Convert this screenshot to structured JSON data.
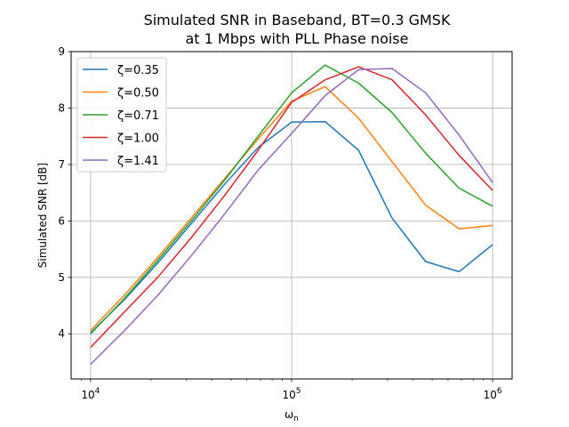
{
  "chart_data": {
    "type": "line",
    "title_line1": "Simulated SNR in Baseband, BT=0.3 GMSK",
    "title_line2": "at 1 Mbps with PLL Phase noise",
    "xlabel_base": "ω",
    "xlabel_sub": "n",
    "ylabel": "Simulated SNR [dB]",
    "x_scale": "log",
    "xlim": [
      8000,
      1250000
    ],
    "ylim": [
      3.2,
      9.0
    ],
    "x_ticks": [
      {
        "value": 10000,
        "base": "10",
        "exp": "4"
      },
      {
        "value": 100000,
        "base": "10",
        "exp": "5"
      },
      {
        "value": 1000000,
        "base": "10",
        "exp": "6"
      }
    ],
    "y_ticks": [
      {
        "value": 4,
        "label": "4"
      },
      {
        "value": 5,
        "label": "5"
      },
      {
        "value": 6,
        "label": "6"
      },
      {
        "value": 7,
        "label": "7"
      },
      {
        "value": 8,
        "label": "8"
      },
      {
        "value": 9,
        "label": "9"
      }
    ],
    "grid": true,
    "legend_position": "top-left",
    "x": [
      10000,
      14678,
      21544,
      31623,
      46416,
      68129,
      100000,
      146780,
      215440,
      316230,
      464160,
      681290,
      1000000
    ],
    "series": [
      {
        "name": "ζ=0.35",
        "color": "#1f77b4",
        "values": [
          4.02,
          4.6,
          5.25,
          5.95,
          6.65,
          7.3,
          7.75,
          7.76,
          7.25,
          6.05,
          5.28,
          5.1,
          5.58
        ]
      },
      {
        "name": "ζ=0.50",
        "color": "#ff7f0e",
        "values": [
          4.06,
          4.68,
          5.35,
          6.05,
          6.75,
          7.45,
          8.12,
          8.38,
          7.82,
          7.05,
          6.28,
          5.86,
          5.92
        ]
      },
      {
        "name": "ζ=0.71",
        "color": "#2ca02c",
        "values": [
          4.0,
          4.62,
          5.3,
          6.0,
          6.72,
          7.5,
          8.27,
          8.76,
          8.44,
          7.92,
          7.2,
          6.58,
          6.26
        ]
      },
      {
        "name": "ζ=1.00",
        "color": "#d62728",
        "values": [
          3.76,
          4.38,
          5.0,
          5.7,
          6.45,
          7.25,
          8.1,
          8.5,
          8.73,
          8.5,
          7.88,
          7.16,
          6.54
        ]
      },
      {
        "name": "ζ=1.41",
        "color": "#9467bd",
        "values": [
          3.46,
          4.05,
          4.68,
          5.38,
          6.12,
          6.9,
          7.55,
          8.22,
          8.68,
          8.7,
          8.27,
          7.52,
          6.68
        ]
      }
    ]
  }
}
